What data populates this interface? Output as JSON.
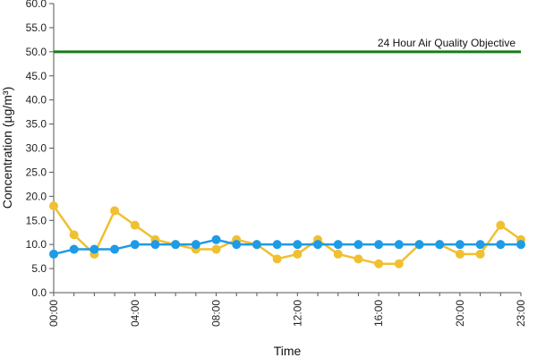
{
  "chart_data": {
    "type": "line",
    "title": "",
    "xlabel": "Time",
    "ylabel": "Concentration (µg/m³)",
    "ylim": [
      0,
      60
    ],
    "yticks": [
      "0.0",
      "5.0",
      "10.0",
      "15.0",
      "20.0",
      "25.0",
      "30.0",
      "35.0",
      "40.0",
      "45.0",
      "50.0",
      "55.0",
      "60.0"
    ],
    "x": [
      "00:00",
      "01:00",
      "02:00",
      "03:00",
      "04:00",
      "05:00",
      "06:00",
      "07:00",
      "08:00",
      "09:00",
      "10:00",
      "11:00",
      "12:00",
      "13:00",
      "14:00",
      "15:00",
      "16:00",
      "17:00",
      "18:00",
      "19:00",
      "20:00",
      "21:00",
      "22:00",
      "23:00"
    ],
    "xtick_labels": [
      "00:00",
      "04:00",
      "08:00",
      "12:00",
      "16:00",
      "20:00",
      "23:00"
    ],
    "series": [
      {
        "color": "#f0c030",
        "values": [
          18,
          12,
          8,
          17,
          14,
          11,
          10,
          9,
          9,
          11,
          10,
          7,
          8,
          11,
          8,
          7,
          6,
          6,
          10,
          10,
          8,
          8,
          14,
          11
        ]
      },
      {
        "color": "#1e9be6",
        "values": [
          8,
          9,
          9,
          9,
          10,
          10,
          10,
          10,
          11,
          10,
          10,
          10,
          10,
          10,
          10,
          10,
          10,
          10,
          10,
          10,
          10,
          10,
          10,
          10
        ]
      }
    ],
    "reference_line": {
      "label": "24 Hour Air Quality Objective",
      "value": 50,
      "color": "#1a7a1a"
    },
    "grid": false,
    "legend": "none"
  }
}
